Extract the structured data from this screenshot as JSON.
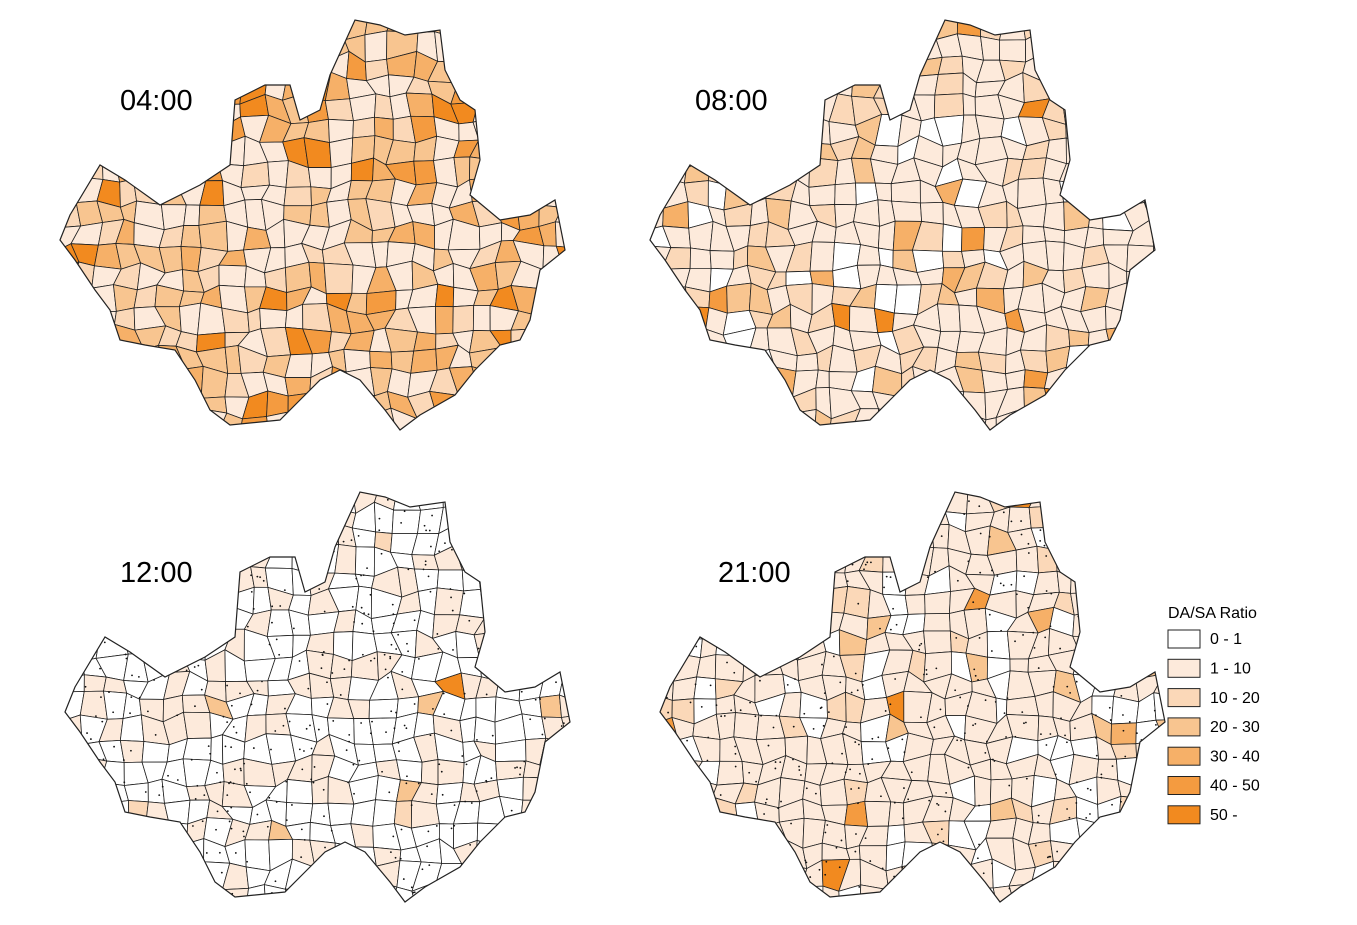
{
  "panels": [
    {
      "label": "04:00"
    },
    {
      "label": "08:00"
    },
    {
      "label": "12:00"
    },
    {
      "label": "21:00"
    }
  ],
  "legend": {
    "title": "DA/SA Ratio",
    "items": [
      {
        "label": "0 - 1",
        "color": "#ffffff"
      },
      {
        "label": "1 - 10",
        "color": "#fdeadb"
      },
      {
        "label": "10 - 20",
        "color": "#fbd8b8"
      },
      {
        "label": "20 - 30",
        "color": "#f8c590"
      },
      {
        "label": "30 - 40",
        "color": "#f6b068"
      },
      {
        "label": "40 - 50",
        "color": "#f49b40"
      },
      {
        "label": "50 -",
        "color": "#f28a1f"
      }
    ]
  }
}
